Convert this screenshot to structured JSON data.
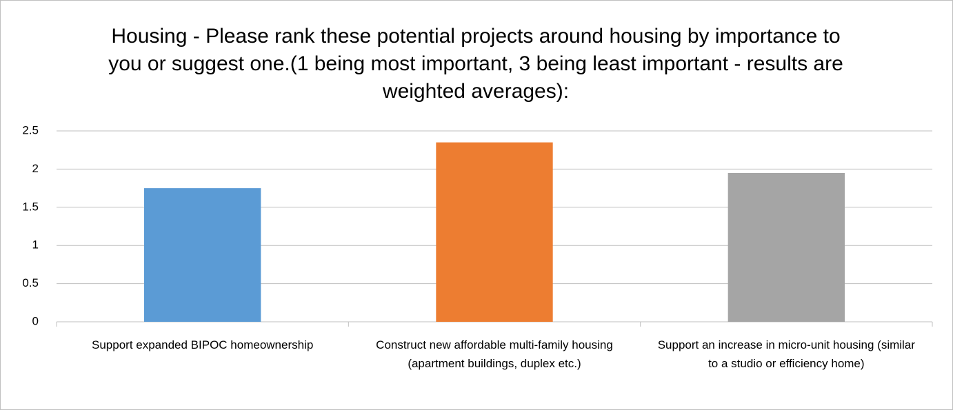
{
  "chart_data": {
    "type": "bar",
    "title": "Housing - Please rank these potential projects around housing by importance to you or suggest one.(1 being most important, 3 being least important - results are weighted averages):",
    "categories": [
      "Support expanded BIPOC homeownership",
      "Construct new affordable multi-family housing (apartment buildings, duplex etc.)",
      "Support an increase in micro-unit housing (similar to a studio or efficiency home)"
    ],
    "values": [
      1.75,
      2.35,
      1.95
    ],
    "colors": [
      "#5b9bd5",
      "#ed7d31",
      "#a5a5a5"
    ],
    "ylim": [
      0,
      2.5
    ],
    "yticks": [
      0,
      0.5,
      1,
      1.5,
      2,
      2.5
    ],
    "grid": true
  }
}
